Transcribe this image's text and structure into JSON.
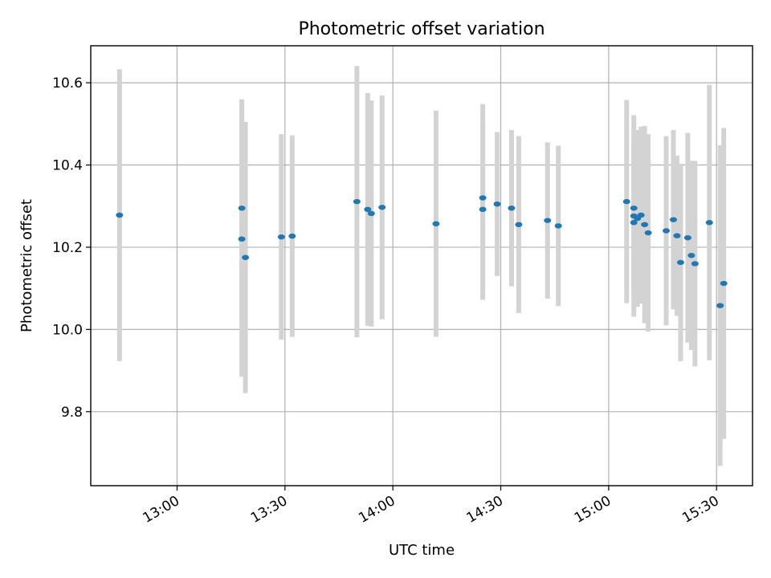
{
  "chart_data": {
    "type": "scatter",
    "title": "Photometric offset variation",
    "xlabel": "UTC time",
    "ylabel": "Photometric offset",
    "x_axis_type": "time",
    "xlim": [
      "12:36",
      "15:40"
    ],
    "ylim": [
      9.62,
      10.69
    ],
    "x_ticks": [
      "13:00",
      "13:30",
      "14:00",
      "14:30",
      "15:00",
      "15:30"
    ],
    "y_ticks": [
      9.8,
      10.0,
      10.2,
      10.4,
      10.6
    ],
    "y_tick_labels": [
      "9.8",
      "10.0",
      "10.2",
      "10.4",
      "10.6"
    ],
    "grid": true,
    "colors": {
      "points": "#1f77b4",
      "error_bars": "#d3d3d3"
    },
    "series": [
      {
        "error_bars": "symmetric",
        "points": [
          {
            "x": "12:44",
            "y": 10.278,
            "err": 0.355
          },
          {
            "x": "13:18",
            "y": 10.22,
            "err": 0.335
          },
          {
            "x": "13:18",
            "y": 10.295,
            "err": 0.265
          },
          {
            "x": "13:19",
            "y": 10.175,
            "err": 0.33
          },
          {
            "x": "13:29",
            "y": 10.225,
            "err": 0.25
          },
          {
            "x": "13:32",
            "y": 10.227,
            "err": 0.245
          },
          {
            "x": "13:50",
            "y": 10.311,
            "err": 0.33
          },
          {
            "x": "13:53",
            "y": 10.292,
            "err": 0.283
          },
          {
            "x": "13:54",
            "y": 10.282,
            "err": 0.275
          },
          {
            "x": "13:57",
            "y": 10.297,
            "err": 0.272
          },
          {
            "x": "14:12",
            "y": 10.257,
            "err": 0.275
          },
          {
            "x": "14:25",
            "y": 10.292,
            "err": 0.22
          },
          {
            "x": "14:25",
            "y": 10.32,
            "err": 0.228
          },
          {
            "x": "14:29",
            "y": 10.305,
            "err": 0.175
          },
          {
            "x": "14:33",
            "y": 10.295,
            "err": 0.19
          },
          {
            "x": "14:35",
            "y": 10.255,
            "err": 0.215
          },
          {
            "x": "14:43",
            "y": 10.265,
            "err": 0.19
          },
          {
            "x": "14:46",
            "y": 10.252,
            "err": 0.195
          },
          {
            "x": "15:05",
            "y": 10.311,
            "err": 0.247
          },
          {
            "x": "15:07",
            "y": 10.26,
            "err": 0.195
          },
          {
            "x": "15:07",
            "y": 10.276,
            "err": 0.245
          },
          {
            "x": "15:07",
            "y": 10.295,
            "err": 0.2
          },
          {
            "x": "15:08",
            "y": 10.27,
            "err": 0.215
          },
          {
            "x": "15:09",
            "y": 10.278,
            "err": 0.215
          },
          {
            "x": "15:10",
            "y": 10.255,
            "err": 0.24
          },
          {
            "x": "15:11",
            "y": 10.235,
            "err": 0.24
          },
          {
            "x": "15:16",
            "y": 10.24,
            "err": 0.23
          },
          {
            "x": "15:18",
            "y": 10.267,
            "err": 0.218
          },
          {
            "x": "15:19",
            "y": 10.228,
            "err": 0.195
          },
          {
            "x": "15:20",
            "y": 10.163,
            "err": 0.24
          },
          {
            "x": "15:22",
            "y": 10.223,
            "err": 0.255
          },
          {
            "x": "15:23",
            "y": 10.18,
            "err": 0.23
          },
          {
            "x": "15:24",
            "y": 10.16,
            "err": 0.25
          },
          {
            "x": "15:28",
            "y": 10.26,
            "err": 0.335
          },
          {
            "x": "15:31",
            "y": 10.058,
            "err": 0.39
          },
          {
            "x": "15:32",
            "y": 10.112,
            "err": 0.378
          }
        ]
      }
    ]
  }
}
